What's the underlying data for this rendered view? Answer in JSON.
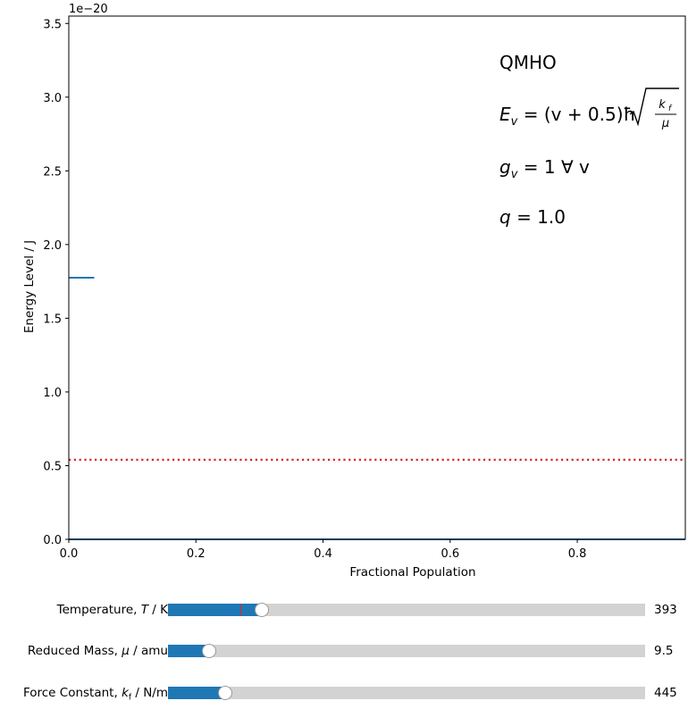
{
  "chart_data": {
    "type": "line",
    "xlabel": "Fractional Population",
    "ylabel": "Energy Level / J",
    "offset_text": "1e−20",
    "xlim": [
      0.0,
      0.97
    ],
    "ylim": [
      0.0,
      3.55
    ],
    "x_ticks": [
      0.0,
      0.2,
      0.4,
      0.6,
      0.8
    ],
    "x_tick_labels": [
      "0.0",
      "0.2",
      "0.4",
      "0.6",
      "0.8"
    ],
    "y_ticks": [
      0.0,
      0.5,
      1.0,
      1.5,
      2.0,
      2.5,
      3.0,
      3.5
    ],
    "y_tick_labels": [
      "0.0",
      "0.5",
      "1.0",
      "1.5",
      "2.0",
      "2.5",
      "3.0",
      "3.5"
    ],
    "series": [
      {
        "x": [
          0.0,
          0.04
        ],
        "y": [
          1.775,
          1.775
        ],
        "color": "#1f77b4"
      },
      {
        "x": [
          0.0,
          0.97
        ],
        "y": [
          0.0,
          0.0
        ],
        "color": "#1f77b4"
      },
      {
        "x": [
          0.0,
          0.97
        ],
        "y": [
          0.54,
          0.54
        ],
        "color": "#d62728",
        "style": "dotted"
      }
    ],
    "annotations": [
      "QMHO",
      "E_v = (v + 0.5)ħ√(k_f/μ)",
      "g_v = 1 ∀ v",
      "q = 1.0"
    ]
  },
  "annotations": {
    "name": "QMHO",
    "energy_prefix": "= (v + 0.5)ħ",
    "degeneracy": "= 1 ∀ v",
    "partition": "= 1.0"
  },
  "sliders": [
    {
      "label": "Temperature,",
      "symbol": "T",
      "unit": " / K",
      "value": "393",
      "fraction": 0.196,
      "initial_fraction": 0.151
    },
    {
      "label": "Reduced Mass,",
      "symbol": "μ",
      "unit": " / amu",
      "value": "9.5",
      "fraction": 0.087
    },
    {
      "label": "Force Constant,",
      "symbol": "k",
      "sub": "f",
      "unit": " / N/m",
      "value": "445",
      "fraction": 0.12
    }
  ]
}
